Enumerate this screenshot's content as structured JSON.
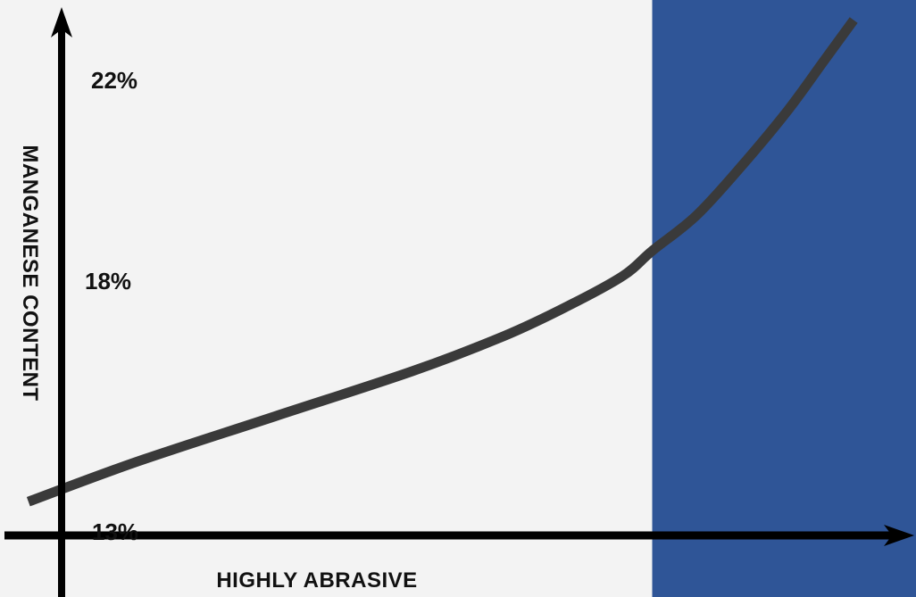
{
  "chart_data": {
    "type": "line",
    "title": "",
    "xlabel": "HIGHLY ABRASIVE",
    "ylabel": "MANGANESE  CONTENT",
    "y_ticks": [
      {
        "value": 13,
        "label": "13%"
      },
      {
        "value": 18,
        "label": "18%"
      },
      {
        "value": 22,
        "label": "22%"
      }
    ],
    "ylim": [
      11.7,
      23.6
    ],
    "xlim": [
      0,
      1
    ],
    "grid": false,
    "highlight_region": {
      "x_start": 0.712,
      "x_end": 1.0,
      "color": "#2f5597"
    },
    "series": [
      {
        "color": "#3a3a3a",
        "x": [
          0.031,
          0.15,
          0.3,
          0.45,
          0.55,
          0.62,
          0.68,
          0.712,
          0.76,
          0.81,
          0.86,
          0.9,
          0.932
        ],
        "y": [
          13.6,
          14.4,
          15.3,
          16.2,
          16.9,
          17.5,
          18.1,
          18.6,
          19.3,
          20.3,
          21.4,
          22.4,
          23.2
        ]
      }
    ]
  },
  "colors": {
    "background": "#f3f3f3",
    "highlight": "#2f5597",
    "curve": "#3a3a3a",
    "axis": "#000000"
  }
}
